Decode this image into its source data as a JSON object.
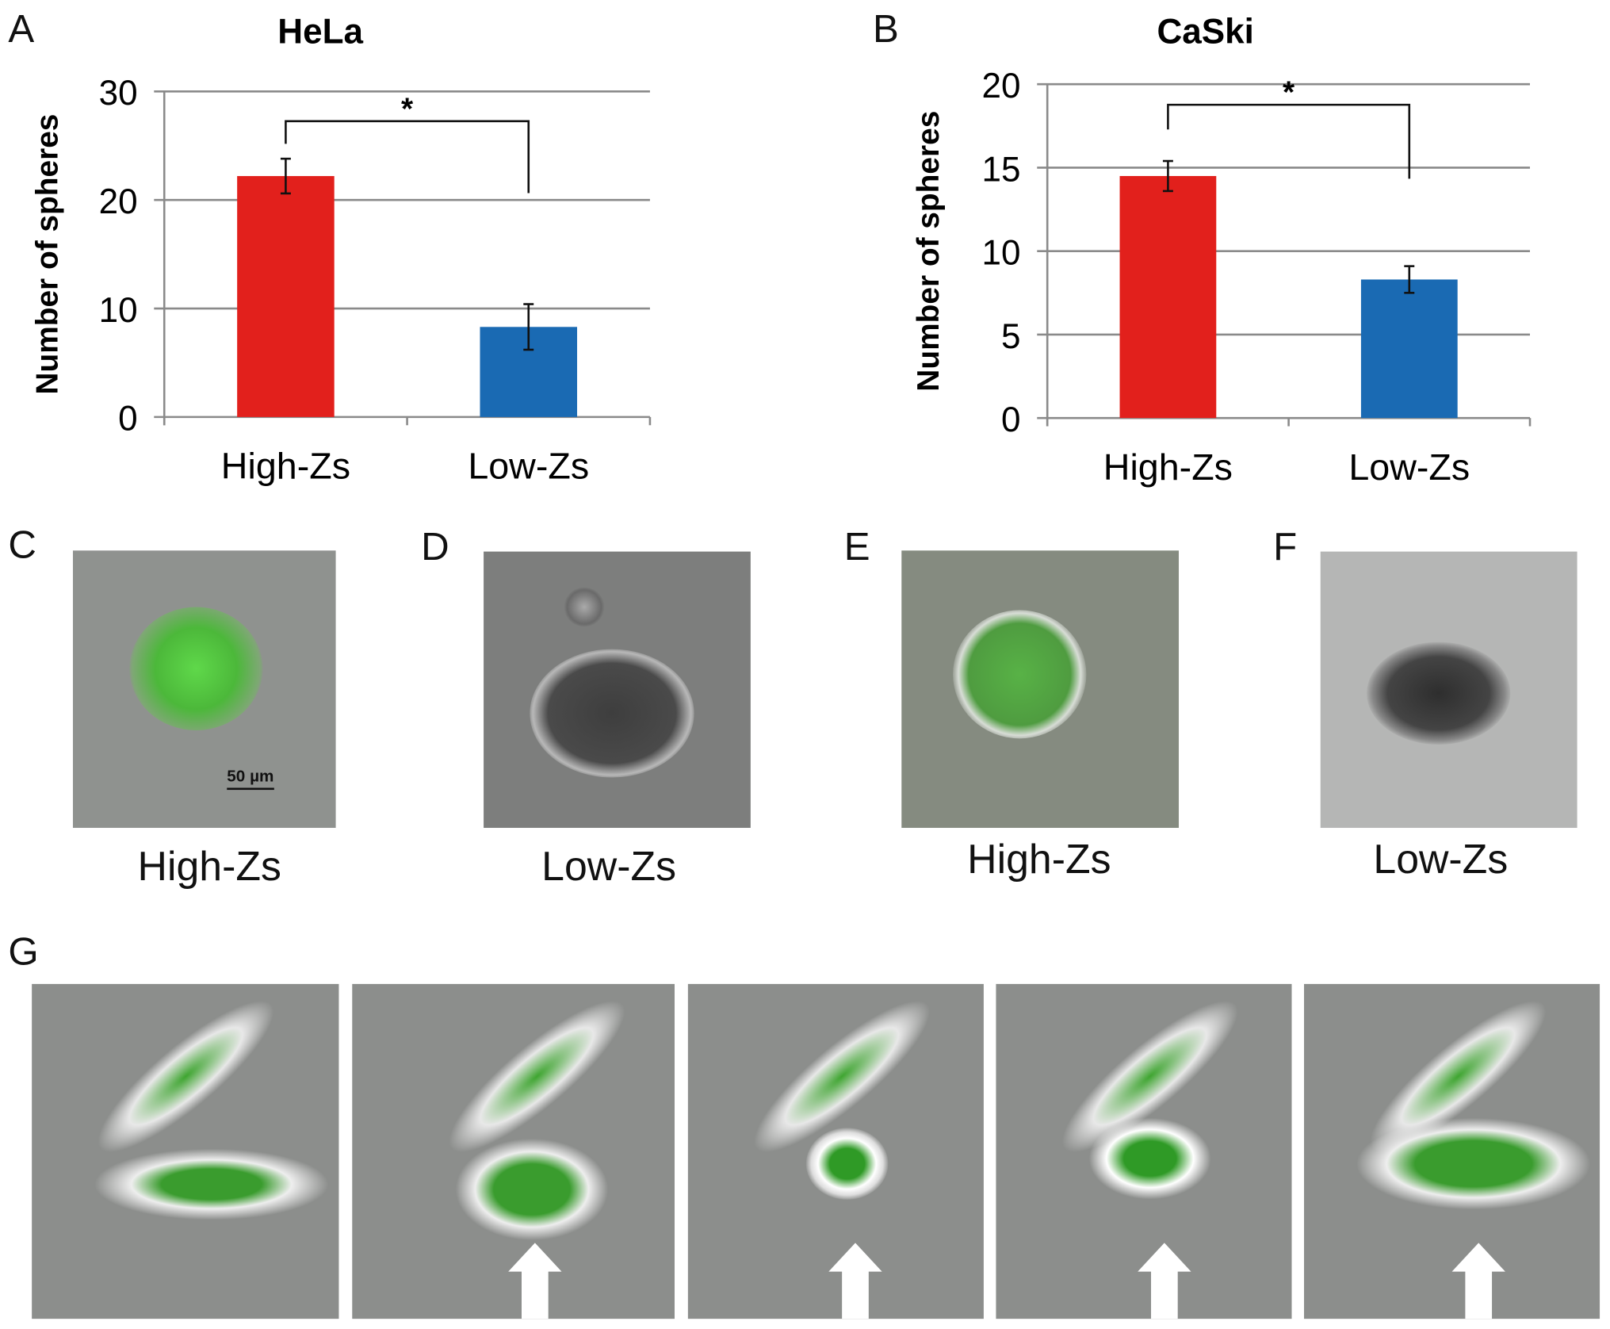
{
  "panels": {
    "A": "A",
    "B": "B",
    "C": "C",
    "D": "D",
    "E": "E",
    "F": "F",
    "G": "G"
  },
  "photo_labels": {
    "C": "High-Zs",
    "D": "Low-Zs",
    "E": "High-Zs",
    "F": "Low-Zs"
  },
  "scale_bar": "50 µm",
  "colors": {
    "high": "#e2201c",
    "low": "#1a6ab3",
    "grid": "#8a8a8a"
  },
  "chart_data": [
    {
      "type": "bar",
      "title": "HeLa",
      "ylabel": "Number of spheres",
      "xlabel": "",
      "categories": [
        "High-Zs",
        "Low-Zs"
      ],
      "values": [
        22.2,
        8.3
      ],
      "errors": [
        1.6,
        2.1
      ],
      "ylim": [
        0,
        30
      ],
      "yticks": [
        0,
        10,
        20,
        30
      ],
      "grid": true,
      "annotation": "*"
    },
    {
      "type": "bar",
      "title": "CaSki",
      "ylabel": "Number of spheres",
      "xlabel": "",
      "categories": [
        "High-Zs",
        "Low-Zs"
      ],
      "values": [
        14.5,
        8.3
      ],
      "errors": [
        0.9,
        0.8
      ],
      "ylim": [
        0,
        20
      ],
      "yticks": [
        0,
        5,
        10,
        15,
        20
      ],
      "grid": true,
      "annotation": "*"
    }
  ]
}
